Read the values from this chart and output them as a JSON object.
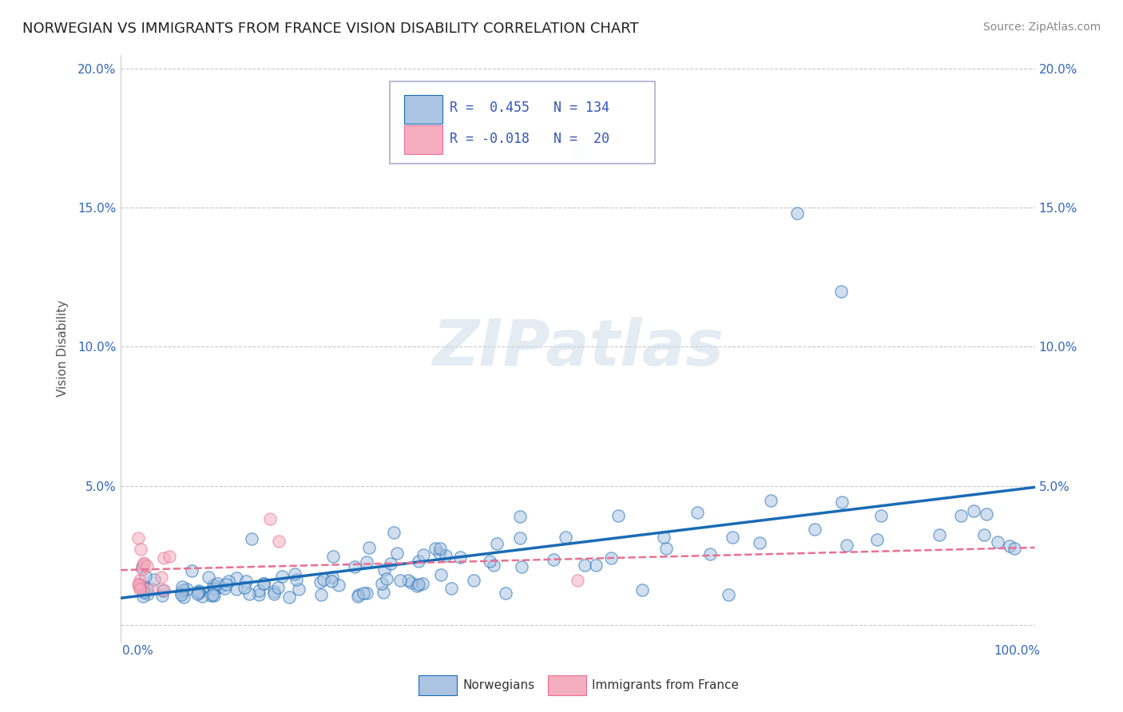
{
  "title": "NORWEGIAN VS IMMIGRANTS FROM FRANCE VISION DISABILITY CORRELATION CHART",
  "source": "Source: ZipAtlas.com",
  "ylabel": "Vision Disability",
  "watermark": "ZIPatlas",
  "legend_norwegian": "Norwegians",
  "legend_immigrants": "Immigrants from France",
  "r_norwegian": 0.455,
  "n_norwegian": 134,
  "r_immigrant": -0.018,
  "n_immigrant": 20,
  "norwegian_color": "#aac4e2",
  "immigrant_color": "#f5adc0",
  "regression_norwegian_color": "#1a6bb5",
  "regression_immigrant_color": "#e87090",
  "background_color": "#ffffff",
  "grid_color": "#c8c8c8",
  "xlim": [
    -0.02,
    1.02
  ],
  "ylim": [
    -0.006,
    0.205
  ],
  "xticks": [
    0.0,
    0.1,
    0.2,
    0.3,
    0.4,
    0.5,
    0.6,
    0.7,
    0.8,
    0.9,
    1.0
  ],
  "yticks": [
    0.0,
    0.05,
    0.1,
    0.15,
    0.2
  ],
  "title_fontsize": 13,
  "tick_fontsize": 11,
  "axis_label_fontsize": 11
}
